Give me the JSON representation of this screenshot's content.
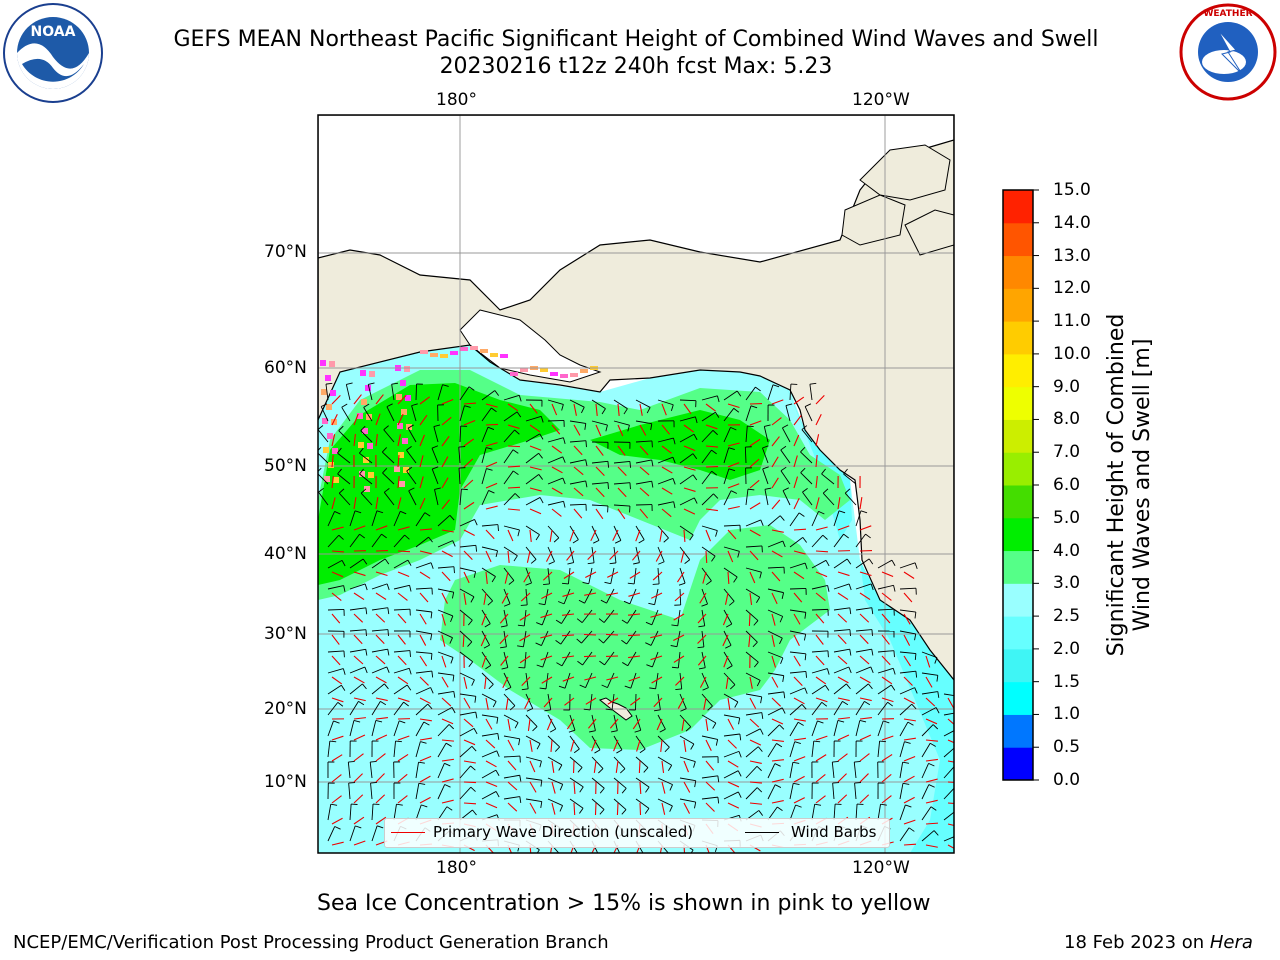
{
  "title_line1": "GEFS MEAN Northeast Pacific Significant Height of Combined Wind Waves and Swell",
  "title_line2": "20230216 t12z 240h fcst   Max: 5.23",
  "logos": {
    "left": "NOAA",
    "right": "National Weather Service"
  },
  "lon_labels_top": [
    "180°",
    "120°W"
  ],
  "lon_labels_bottom": [
    "180°",
    "120°W"
  ],
  "lat_labels": [
    "70°N",
    "60°N",
    "50°N",
    "40°N",
    "30°N",
    "20°N",
    "10°N"
  ],
  "legend": {
    "wave_label": "Primary Wave Direction (unscaled)",
    "wind_label": "Wind Barbs"
  },
  "colorbar": {
    "title_line1": "Significant Height of Combined",
    "title_line2": "Wind Waves and Swell [m]",
    "ticks": [
      "0.0",
      "0.5",
      "1.0",
      "1.5",
      "2.0",
      "2.5",
      "3.0",
      "4.0",
      "5.0",
      "6.0",
      "7.0",
      "8.0",
      "9.0",
      "10.0",
      "11.0",
      "12.0",
      "13.0",
      "14.0",
      "15.0"
    ],
    "colors": [
      "#0000ff",
      "#0077ff",
      "#00ffff",
      "#3ff5f5",
      "#66ffff",
      "#99ffff",
      "#55ff88",
      "#00ee00",
      "#44dd00",
      "#99ee00",
      "#ccee00",
      "#eeff00",
      "#ffee00",
      "#ffcc00",
      "#ffa500",
      "#ff8800",
      "#ff5500",
      "#ff2200"
    ]
  },
  "ice_note": "Sea Ice Concentration > 15% is shown in pink to yellow",
  "footer_left": "NCEP/EMC/Verification Post Processing Product Generation Branch",
  "footer_right_date": "18 Feb 2023 on ",
  "footer_right_host": "Hera",
  "colors": {
    "land": "#efecdc",
    "wave_arrow": "#ee0000",
    "barb": "#000000"
  }
}
